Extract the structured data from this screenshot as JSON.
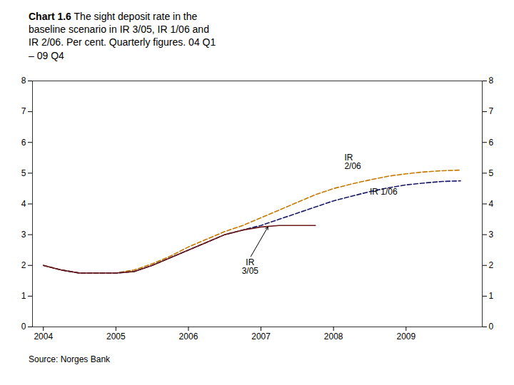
{
  "chart_data": {
    "type": "line",
    "title": "Chart 1.6",
    "subtitle": "The sight deposit rate in the\nbaseline scenario in IR 3/05, IR 1/06 and\nIR 2/06. Per cent. Quarterly figures. 04 Q1\n– 09 Q4",
    "source": "Source: Norges Bank",
    "x": [
      2004.0,
      2004.25,
      2004.5,
      2004.75,
      2005.0,
      2005.25,
      2005.5,
      2005.75,
      2006.0,
      2006.25,
      2006.5,
      2006.75,
      2007.0,
      2007.25,
      2007.5,
      2007.75,
      2008.0,
      2008.25,
      2008.5,
      2008.75,
      2009.0,
      2009.25,
      2009.5,
      2009.75
    ],
    "series": [
      {
        "name": "IR 2/06",
        "color": "#C87800",
        "line_style": "dashed",
        "values": [
          2.0,
          1.85,
          1.75,
          1.75,
          1.75,
          1.85,
          2.05,
          2.3,
          2.6,
          2.85,
          3.1,
          3.3,
          3.55,
          3.8,
          4.05,
          4.3,
          4.5,
          4.65,
          4.78,
          4.9,
          4.98,
          5.04,
          5.08,
          5.1
        ]
      },
      {
        "name": "IR 1/06",
        "color": "#1A1A6B",
        "line_style": "dashed",
        "values": [
          2.0,
          1.85,
          1.75,
          1.75,
          1.75,
          1.8,
          2.0,
          2.25,
          2.5,
          2.75,
          3.0,
          3.15,
          3.3,
          3.5,
          3.7,
          3.9,
          4.1,
          4.25,
          4.4,
          4.52,
          4.62,
          4.68,
          4.73,
          4.75
        ]
      },
      {
        "name": "IR 3/05",
        "color": "#6B1A1A",
        "line_style": "solid",
        "values": [
          2.0,
          1.85,
          1.75,
          1.75,
          1.75,
          1.8,
          2.0,
          2.25,
          2.5,
          2.75,
          3.0,
          3.15,
          3.25,
          3.3,
          3.3,
          3.3,
          null,
          null,
          null,
          null,
          null,
          null,
          null,
          null
        ]
      }
    ],
    "xlim": [
      2003.85,
      2010.05
    ],
    "xticks": [
      2004,
      2005,
      2006,
      2007,
      2008,
      2009
    ],
    "ylim": [
      0,
      8
    ],
    "yticks": [
      0,
      1,
      2,
      3,
      4,
      5,
      6,
      7,
      8
    ],
    "y2lim": [
      0,
      8
    ],
    "y2ticks": [
      0,
      1,
      2,
      3,
      4,
      5,
      6,
      7,
      8
    ],
    "grid": false,
    "legend": false,
    "annotations": [
      {
        "text": "IR\n3/05",
        "x": 2006.85,
        "y": 2.25,
        "arrow_to": [
          2007.1,
          3.27
        ]
      },
      {
        "text": "IR\n2/06",
        "x": 2008.15,
        "y": 5.65
      },
      {
        "text": "IR 1/06",
        "x": 2008.5,
        "y": 4.55
      }
    ]
  }
}
